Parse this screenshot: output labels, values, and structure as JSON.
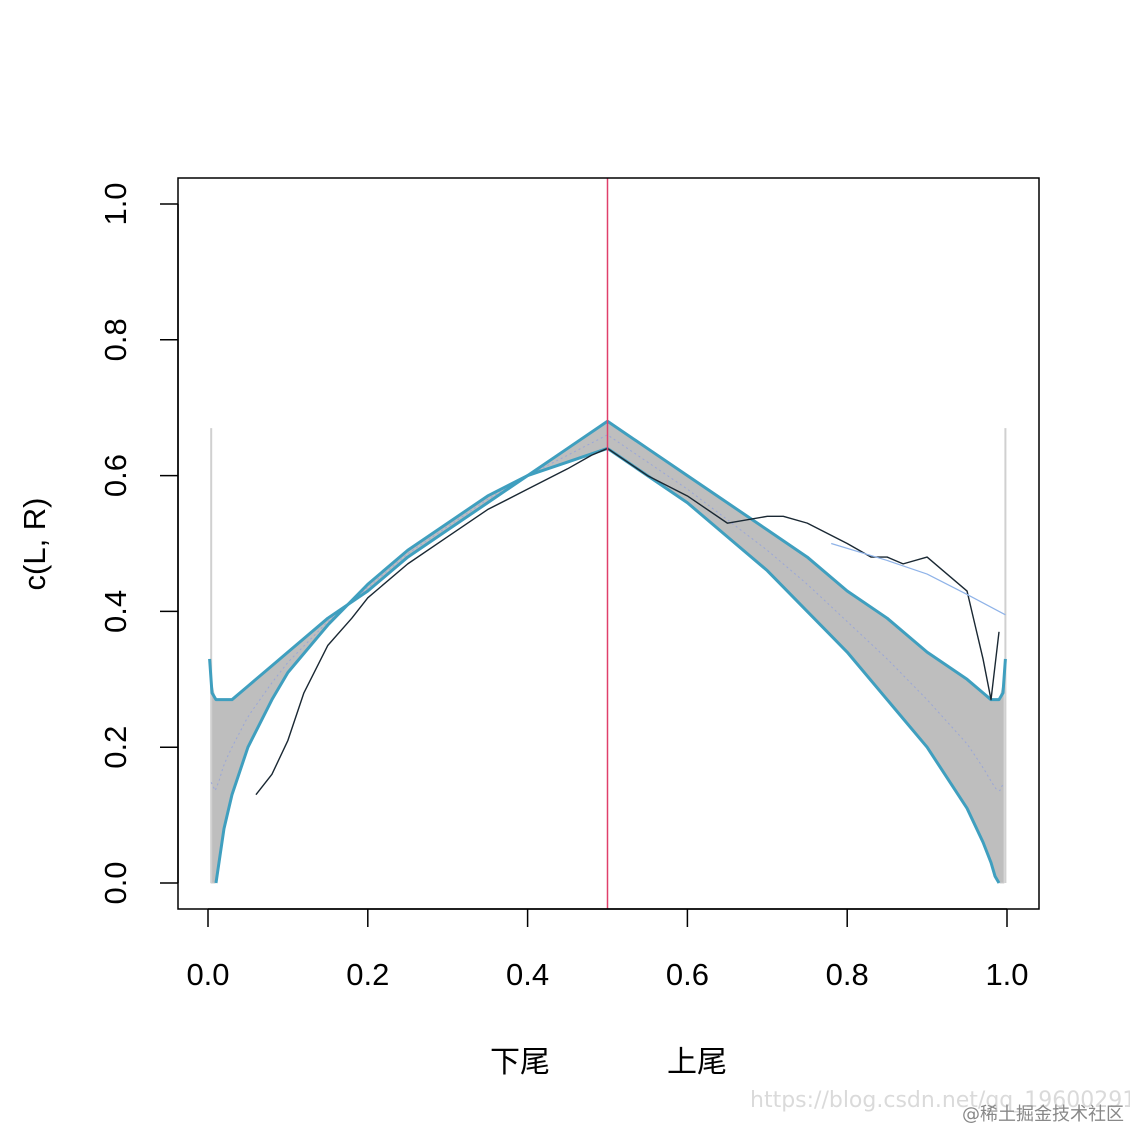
{
  "chart_data": {
    "type": "line",
    "ylabel": "c(L, R)",
    "xlabels": [
      "下尾",
      "上尾"
    ],
    "xlim": [
      -0.04,
      1.04
    ],
    "ylim": [
      -0.04,
      1.04
    ],
    "x_ticks": [
      0.0,
      0.2,
      0.4,
      0.6,
      0.8,
      1.0
    ],
    "y_ticks": [
      0.0,
      0.2,
      0.4,
      0.6,
      0.8,
      1.0
    ],
    "x_tick_labels": [
      "0.0",
      "0.2",
      "0.4",
      "0.6",
      "0.8",
      "1.0"
    ],
    "y_tick_labels": [
      "0.0",
      "0.2",
      "0.4",
      "0.6",
      "0.8",
      "1.0"
    ],
    "divider_x": 0.5,
    "series": [
      {
        "role": "simulation-band-upper",
        "color": "#3f9fbf",
        "x": [
          0.002,
          0.005,
          0.01,
          0.02,
          0.03,
          0.05,
          0.08,
          0.1,
          0.15,
          0.2,
          0.25,
          0.3,
          0.35,
          0.4,
          0.45,
          0.5,
          0.55,
          0.6,
          0.65,
          0.7,
          0.75,
          0.8,
          0.85,
          0.9,
          0.95,
          0.97,
          0.98,
          0.99,
          0.995,
          0.998
        ],
        "y": [
          0.33,
          0.28,
          0.27,
          0.27,
          0.27,
          0.29,
          0.32,
          0.34,
          0.39,
          0.43,
          0.48,
          0.52,
          0.56,
          0.6,
          0.64,
          0.68,
          0.64,
          0.6,
          0.56,
          0.52,
          0.48,
          0.43,
          0.39,
          0.34,
          0.3,
          0.28,
          0.27,
          0.27,
          0.28,
          0.33
        ]
      },
      {
        "role": "simulation-band-lower",
        "color": "#3f9fbf",
        "x": [
          0.01,
          0.015,
          0.02,
          0.03,
          0.05,
          0.08,
          0.1,
          0.15,
          0.2,
          0.25,
          0.3,
          0.35,
          0.4,
          0.45,
          0.5,
          0.55,
          0.6,
          0.65,
          0.7,
          0.75,
          0.8,
          0.85,
          0.9,
          0.95,
          0.97,
          0.98,
          0.985,
          0.99
        ],
        "y": [
          0.0,
          0.04,
          0.08,
          0.13,
          0.2,
          0.27,
          0.31,
          0.38,
          0.44,
          0.49,
          0.53,
          0.57,
          0.6,
          0.62,
          0.64,
          0.6,
          0.56,
          0.51,
          0.46,
          0.4,
          0.34,
          0.27,
          0.2,
          0.11,
          0.06,
          0.03,
          0.01,
          0.0
        ]
      },
      {
        "role": "empirical",
        "color": "#1a2833",
        "x": [
          0.06,
          0.08,
          0.1,
          0.12,
          0.15,
          0.18,
          0.2,
          0.25,
          0.3,
          0.35,
          0.4,
          0.45,
          0.48,
          0.5,
          0.55,
          0.6,
          0.65,
          0.7,
          0.72,
          0.75,
          0.8,
          0.83,
          0.85,
          0.87,
          0.9,
          0.92,
          0.95,
          0.96,
          0.97,
          0.98,
          0.99
        ],
        "y": [
          0.13,
          0.16,
          0.21,
          0.28,
          0.35,
          0.39,
          0.42,
          0.47,
          0.51,
          0.55,
          0.58,
          0.61,
          0.63,
          0.64,
          0.6,
          0.57,
          0.53,
          0.54,
          0.54,
          0.53,
          0.5,
          0.48,
          0.48,
          0.47,
          0.48,
          0.46,
          0.43,
          0.38,
          0.33,
          0.27,
          0.37
        ]
      },
      {
        "role": "fitted-line",
        "color": "#8fb3e8",
        "x": [
          0.78,
          0.85,
          0.9,
          0.95,
          0.998
        ],
        "y": [
          0.5,
          0.475,
          0.455,
          0.425,
          0.395
        ]
      }
    ],
    "band_fill_color": "#b3b3b3",
    "divider_color": "#e0406a"
  },
  "watermark": {
    "url": "https://blog.csdn.net/qq_19600291",
    "site": "@稀土掘金技术社区"
  }
}
